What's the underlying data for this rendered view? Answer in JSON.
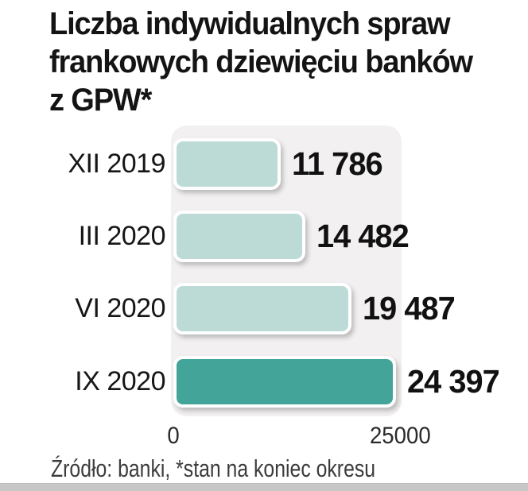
{
  "header": {
    "title_lines": [
      "Liczba indywidualnych spraw",
      "frankowych dziewięciu banków",
      "z GPW*"
    ]
  },
  "chart_data": {
    "type": "bar",
    "orientation": "horizontal",
    "title": "Liczba indywidualnych spraw frankowych dziewięciu banków z GPW*",
    "categories": [
      "XII 2019",
      "III 2020",
      "VI 2020",
      "IX 2020"
    ],
    "values": [
      11786,
      14482,
      19487,
      24397
    ],
    "value_labels": [
      "11 786",
      "14 482",
      "19 487",
      "24 397"
    ],
    "xlim": [
      0,
      25000
    ],
    "x_ticks": [
      "0",
      "25000"
    ],
    "xlabel": "",
    "ylabel": "",
    "grid": false,
    "legend": "none",
    "highlight_index": 3,
    "colors": {
      "bar_light": "#bcdad6",
      "bar_highlight": "#43a49a",
      "bar_border": "#ffffff",
      "panel_bg": "#f2f0f1",
      "text": "#141414"
    }
  },
  "footer": {
    "source_note": "Źródło: banki, *stan na koniec okresu"
  }
}
